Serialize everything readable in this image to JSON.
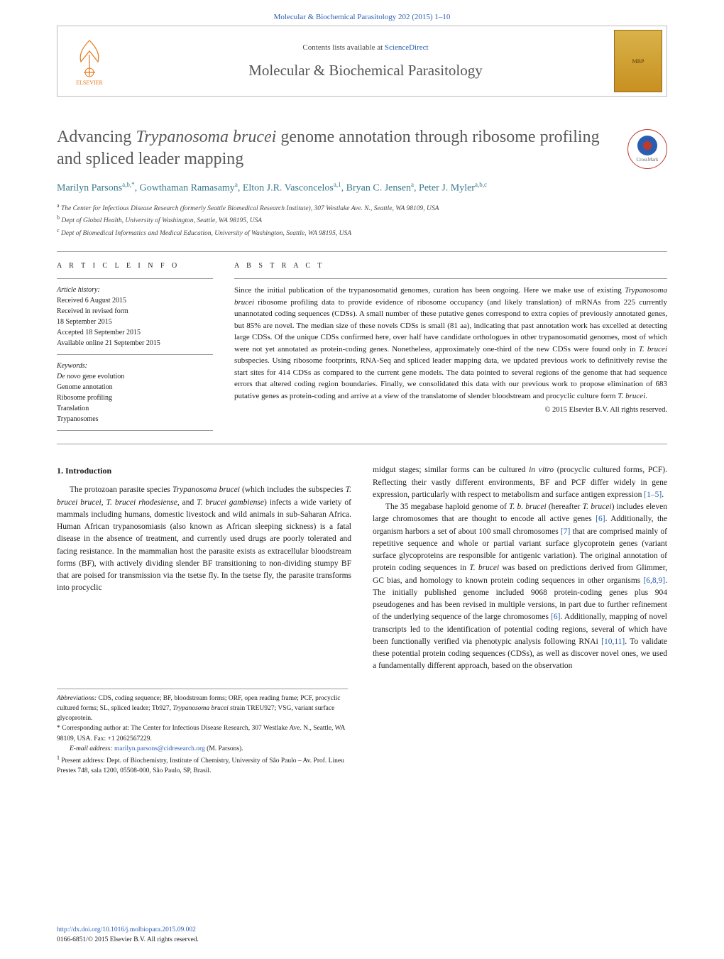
{
  "header": {
    "running_head": "Molecular & Biochemical Parasitology 202 (2015) 1–10",
    "lists_prefix": "Contents lists available at ",
    "lists_link": "ScienceDirect",
    "journal_name": "Molecular & Biochemical Parasitology",
    "publisher_name": "ELSEVIER",
    "cover_text": "MBP"
  },
  "article": {
    "title_pre": "Advancing ",
    "title_italic": "Trypanosoma brucei",
    "title_post": " genome annotation through ribosome profiling and spliced leader mapping",
    "crossmark_label": "CrossMark"
  },
  "authors_html": "Marilyn Parsons<sup>a,b,*</sup>, Gowthaman Ramasamy<sup>a</sup>, Elton J.R. Vasconcelos<sup>a,1</sup>, Bryan C. Jensen<sup>a</sup>, Peter J. Myler<sup>a,b,c</sup>",
  "affiliations": [
    {
      "sup": "a",
      "text": "The Center for Infectious Disease Research (formerly Seattle Biomedical Research Institute), 307 Westlake Ave. N., Seattle, WA 98109, USA"
    },
    {
      "sup": "b",
      "text": "Dept of Global Health, University of Washington, Seattle, WA 98195, USA"
    },
    {
      "sup": "c",
      "text": "Dept of Biomedical Informatics and Medical Education, University of Washington, Seattle, WA 98195, USA"
    }
  ],
  "info": {
    "heading": "a r t i c l e   i n f o",
    "history_label": "Article history:",
    "history": [
      "Received 6 August 2015",
      "Received in revised form",
      "18 September 2015",
      "Accepted 18 September 2015",
      "Available online 21 September 2015"
    ],
    "keywords_label": "Keywords:",
    "keywords": [
      "De novo gene evolution",
      "Genome annotation",
      "Ribosome profiling",
      "Translation",
      "Trypanosomes"
    ]
  },
  "abstract": {
    "heading": "a b s t r a c t",
    "text_parts": [
      "Since the initial publication of the trypanosomatid genomes, curation has been ongoing. Here we make use of existing ",
      "Trypanosoma brucei",
      " ribosome profiling data to provide evidence of ribosome occupancy (and likely translation) of mRNAs from 225 currently unannotated coding sequences (CDSs). A small number of these putative genes correspond to extra copies of previously annotated genes, but 85% are novel. The median size of these novels CDSs is small (81 aa), indicating that past annotation work has excelled at detecting large CDSs. Of the unique CDSs confirmed here, over half have candidate orthologues in other trypanosomatid genomes, most of which were not yet annotated as protein-coding genes. Nonetheless, approximately one-third of the new CDSs were found only in ",
      "T. brucei",
      " subspecies. Using ribosome footprints, RNA-Seq and spliced leader mapping data, we updated previous work to definitively revise the start sites for 414 CDSs as compared to the current gene models. The data pointed to several regions of the genome that had sequence errors that altered coding region boundaries. Finally, we consolidated this data with our previous work to propose elimination of 683 putative genes as protein-coding and arrive at a view of the translatome of slender bloodstream and procyclic culture form ",
      "T. brucei",
      "."
    ],
    "copyright": "© 2015 Elsevier B.V. All rights reserved."
  },
  "intro": {
    "heading": "1.  Introduction",
    "col1_p1_parts": [
      "The protozoan parasite species ",
      "Trypanosoma brucei",
      " (which includes the subspecies ",
      "T. brucei brucei",
      ", ",
      "T. brucei rhodesiense",
      ", and ",
      "T. brucei gambiense",
      ") infects a wide variety of mammals including humans, domestic livestock and wild animals in sub-Saharan Africa. Human African trypanosomiasis (also known as African sleeping sickness) is a fatal disease in the absence of treatment, and currently used drugs are poorly tolerated and facing resistance. In the mammalian host the parasite exists as extracellular bloodstream forms (BF), with actively dividing slender BF transitioning to non-dividing stumpy BF that are poised for transmission via the tsetse fly. In the tsetse fly, the parasite transforms into procyclic"
    ],
    "col2_p1_parts": [
      "midgut stages; similar forms can be cultured ",
      "in vitro",
      " (procyclic cultured forms, PCF). Reflecting their vastly different environments, BF and PCF differ widely in gene expression, particularly with respect to metabolism and surface antigen expression "
    ],
    "col2_p1_ref": "[1–5]",
    "col2_p1_end": ".",
    "col2_p2_parts": [
      "The 35 megabase haploid genome of ",
      "T. b. brucei",
      " (hereafter ",
      "T. brucei",
      ") includes eleven large chromosomes that are thought to encode all active genes "
    ],
    "col2_p2_ref1": "[6]",
    "col2_p2_mid1": ". Additionally, the organism harbors a set of about 100 small chromosomes ",
    "col2_p2_ref2": "[7]",
    "col2_p2_mid2_parts": [
      " that are comprised mainly of repetitive sequence and whole or partial variant surface glycoprotein genes (variant surface glycoproteins are responsible for antigenic variation). The original annotation of protein coding sequences in ",
      "T. brucei",
      " was based on predictions derived from Glimmer, GC bias, and homology to known protein coding sequences in other organisms "
    ],
    "col2_p2_ref3": "[6,8,9]",
    "col2_p2_mid3": ". The initially published genome included 9068 protein-coding genes plus 904 pseudogenes and has been revised in multiple versions, in part due to further refinement of the underlying sequence of the large chromosomes ",
    "col2_p2_ref4": "[6]",
    "col2_p2_mid4": ". Additionally, mapping of novel transcripts led to the identification of potential coding regions, several of which have been functionally verified via phenotypic analysis following RNAi ",
    "col2_p2_ref5": "[10,11]",
    "col2_p2_end": ". To validate these potential protein coding sequences (CDSs), as well as discover novel ones, we used a fundamentally different approach, based on the observation"
  },
  "footnotes": {
    "abbrev_label": "Abbreviations:",
    "abbrev_text_parts": [
      " CDS, coding sequence; BF, bloodstream forms; ORF, open reading frame; PCF, procyclic cultured forms; SL, spliced leader; Tb927, ",
      "Trypanosoma brucei",
      " strain TREU927; VSG, variant surface glycoprotein."
    ],
    "corresp_marker": "*",
    "corresp_text": " Corresponding author at: The Center for Infectious Disease Research, 307 Westlake Ave. N., Seattle, WA 98109, USA. Fax: +1 2062567229.",
    "email_label": "E-mail address: ",
    "email": "marilyn.parsons@cidresearch.org",
    "email_suffix": " (M. Parsons).",
    "present_marker": "1",
    "present_text": " Present address: Dept. of Biochemistry, Institute of Chemistry, University of São Paulo – Av. Prof. Lineu Prestes 748, sala 1200, 05508-000, São Paulo, SP, Brasil."
  },
  "footer": {
    "doi": "http://dx.doi.org/10.1016/j.molbiopara.2015.09.002",
    "issn_line": "0166-6851/© 2015 Elsevier B.V. All rights reserved."
  },
  "colors": {
    "link": "#2a5db0",
    "author": "#3a7a8a",
    "elsevier": "#e67817"
  }
}
